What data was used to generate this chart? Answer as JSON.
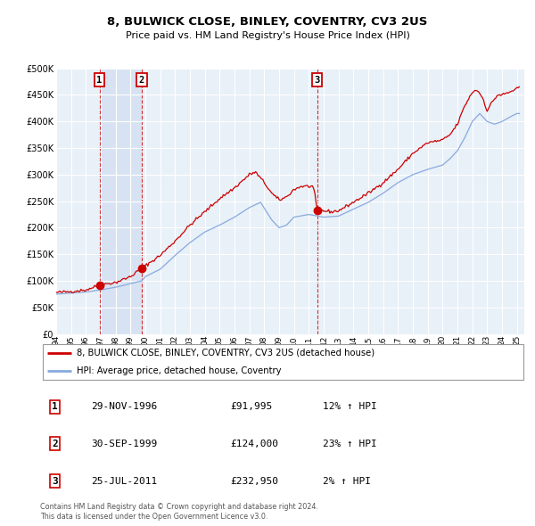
{
  "title1": "8, BULWICK CLOSE, BINLEY, COVENTRY, CV3 2US",
  "title2": "Price paid vs. HM Land Registry's House Price Index (HPI)",
  "ylim": [
    0,
    500000
  ],
  "yticks": [
    0,
    50000,
    100000,
    150000,
    200000,
    250000,
    300000,
    350000,
    400000,
    450000,
    500000
  ],
  "ytick_labels": [
    "£0",
    "£50K",
    "£100K",
    "£150K",
    "£200K",
    "£250K",
    "£300K",
    "£350K",
    "£400K",
    "£450K",
    "£500K"
  ],
  "sale_years_decimal": [
    1996.914,
    1999.747,
    2011.56
  ],
  "sale_prices": [
    91995,
    124000,
    232950
  ],
  "sale_labels": [
    "1",
    "2",
    "3"
  ],
  "hpi_color": "#88aadd",
  "price_color": "#cc0000",
  "sale_marker_color": "#cc0000",
  "plot_bg_color": "#e8f0f8",
  "hatch_color": "#c0ccd8",
  "legend_entry1": "8, BULWICK CLOSE, BINLEY, COVENTRY, CV3 2US (detached house)",
  "legend_entry2": "HPI: Average price, detached house, Coventry",
  "table_entries": [
    {
      "label": "1",
      "date": "29-NOV-1996",
      "price": "£91,995",
      "hpi": "12% ↑ HPI"
    },
    {
      "label": "2",
      "date": "30-SEP-1999",
      "price": "£124,000",
      "hpi": "23% ↑ HPI"
    },
    {
      "label": "3",
      "date": "25-JUL-2011",
      "price": "£232,950",
      "hpi": "2% ↑ HPI"
    }
  ],
  "footnote1": "Contains HM Land Registry data © Crown copyright and database right 2024.",
  "footnote2": "This data is licensed under the Open Government Licence v3.0.",
  "xmin": 1994.0,
  "xmax": 2025.5,
  "xtick_years": [
    1994,
    1995,
    1996,
    1997,
    1998,
    1999,
    2000,
    2001,
    2002,
    2003,
    2004,
    2005,
    2006,
    2007,
    2008,
    2009,
    2010,
    2011,
    2012,
    2013,
    2014,
    2015,
    2016,
    2017,
    2018,
    2019,
    2020,
    2021,
    2022,
    2023,
    2024,
    2025
  ]
}
